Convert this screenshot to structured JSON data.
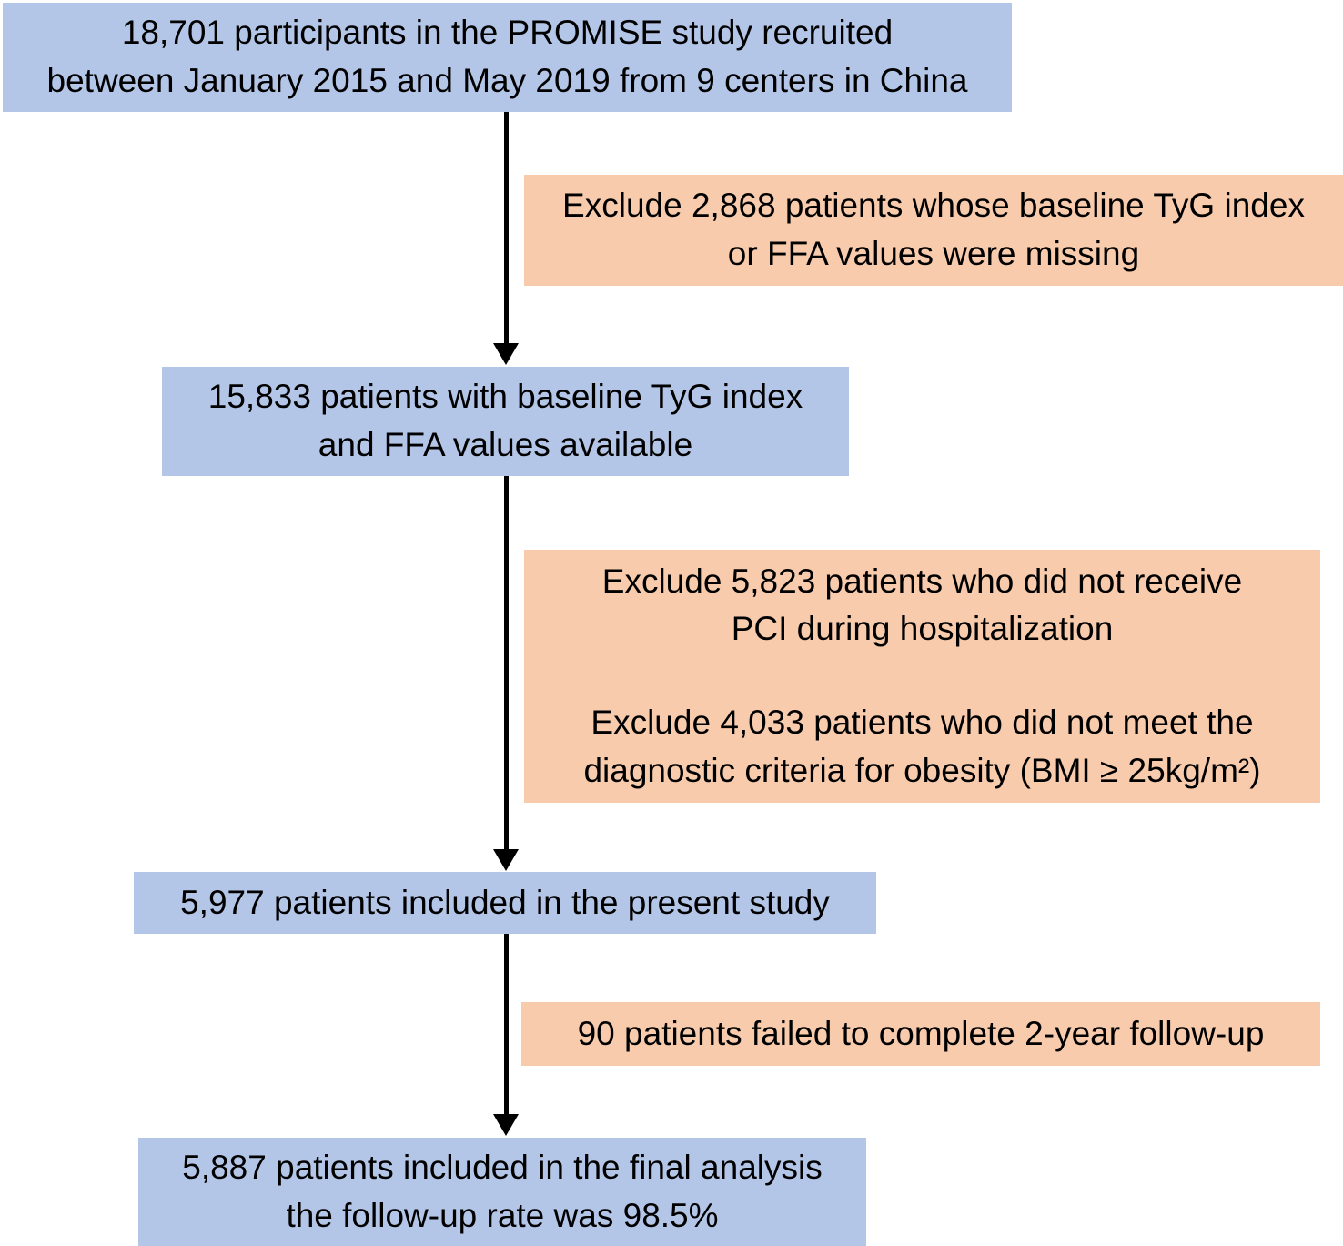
{
  "diagram": {
    "type": "study-flowchart",
    "boxes": {
      "recruited": {
        "role": "population",
        "count": "18,701",
        "text": "18,701 participants in the PROMISE study recruited\nbetween January 2015 and May 2019 from 9 centers in China"
      },
      "exclude_missing": {
        "role": "exclusion",
        "count": "2,868",
        "text": "Exclude 2,868 patients whose baseline TyG index\nor FFA values were missing"
      },
      "baseline_available": {
        "role": "population",
        "count": "15,833",
        "text": "15,833 patients with baseline TyG index\nand FFA values available"
      },
      "exclude_pci": {
        "role": "exclusion",
        "count": "5,823",
        "text": "Exclude 5,823 patients who did not receive\nPCI during hospitalization"
      },
      "exclude_obesity": {
        "role": "exclusion",
        "count": "4,033",
        "text": "Exclude 4,033 patients who did not meet the\ndiagnostic criteria for obesity (BMI ≥ 25kg/m²)"
      },
      "included_present": {
        "role": "population",
        "count": "5,977",
        "text": "5,977 patients included in the present study"
      },
      "failed_followup": {
        "role": "exclusion",
        "count": "90",
        "text": "90 patients failed to complete 2-year follow-up"
      },
      "final_analysis": {
        "role": "population",
        "count": "5,887",
        "followup_rate": "98.5%",
        "text": "5,887 patients included in the final analysis\nthe follow-up rate was 98.5%"
      }
    },
    "arrows": [
      {
        "from": "recruited",
        "to": "baseline_available"
      },
      {
        "from": "baseline_available",
        "to": "included_present"
      },
      {
        "from": "included_present",
        "to": "final_analysis"
      }
    ]
  },
  "colors": {
    "population_fill": "#b4c6e7",
    "exclusion_fill": "#f8cbad",
    "arrow": "#000000",
    "text": "#000000"
  }
}
